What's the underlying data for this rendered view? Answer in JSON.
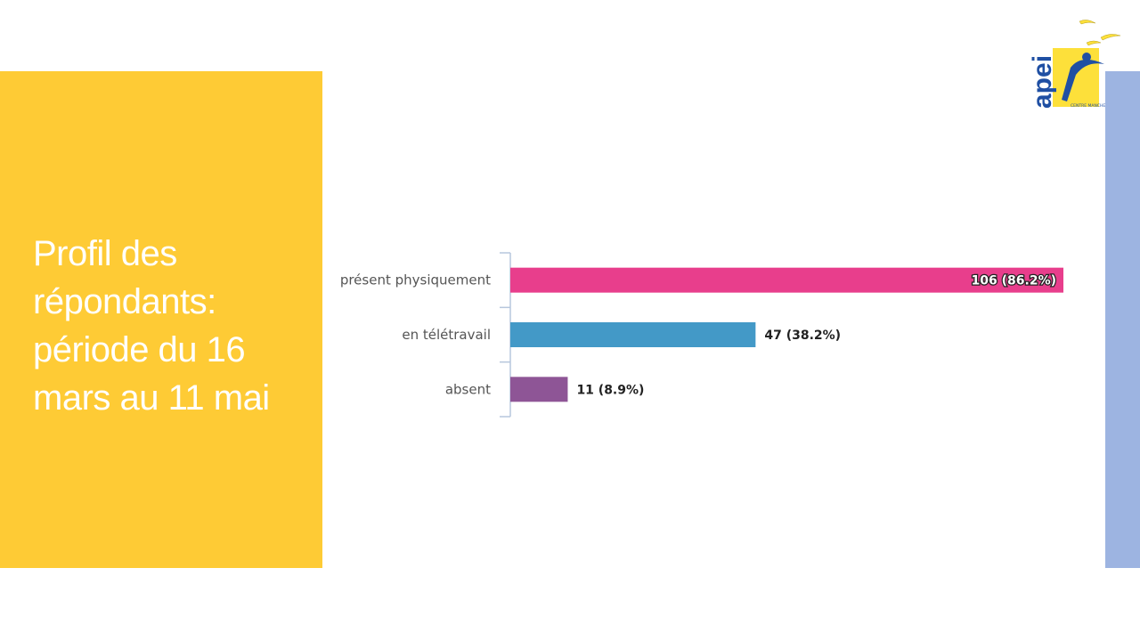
{
  "slide": {
    "title": "Profil des répondants: période du 16 mars au 11 mai"
  },
  "logo": {
    "text": "apei",
    "subtext": "CENTRE MANCHE"
  },
  "colors": {
    "yellow_panel": "#fecb35",
    "blue_strip": "#9db4e1",
    "logo_blue": "#1f4fa3",
    "logo_yellow": "#fde03a"
  },
  "chart_data": {
    "type": "bar",
    "orientation": "horizontal",
    "categories": [
      "présent physiquement",
      "en télétravail",
      "absent"
    ],
    "values": [
      106,
      47,
      11
    ],
    "data_labels": [
      "106 (86.2%)",
      "47 (38.2%)",
      "11 (8.9%)"
    ],
    "colors": [
      "#e83e8c",
      "#4399c7",
      "#8e5596"
    ],
    "xlim": [
      0,
      106
    ],
    "grid": false,
    "legend": "none"
  }
}
